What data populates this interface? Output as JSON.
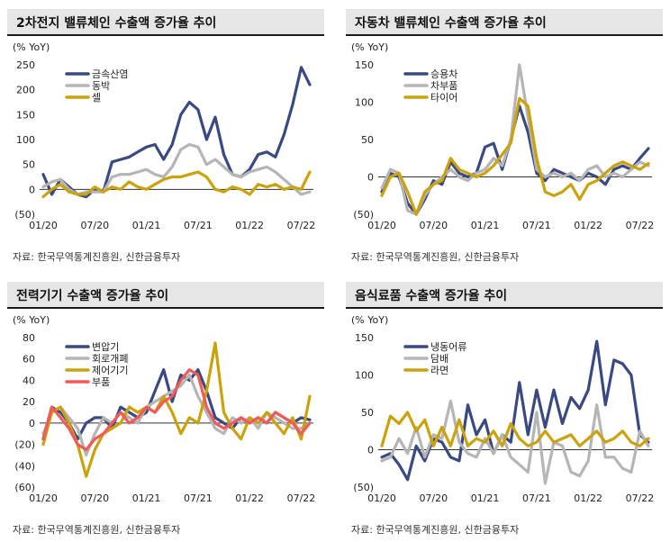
{
  "source_label": "자료: 한국무역통계진흥원, 신한금융투자",
  "colors": {
    "navy": "#3a4a80",
    "gray": "#b5b5b5",
    "gold": "#c9a20c",
    "red": "#f05a5a"
  },
  "chart_data": [
    {
      "type": "line",
      "title": "2차전지 밸류체인 수출액 증가율 추이",
      "ylabel": "(% YoY)",
      "ylim": [
        -50,
        250
      ],
      "yticks": [
        "250",
        "200",
        "150",
        "100",
        "50",
        "0",
        "(50)"
      ],
      "xticks": [
        "01/20",
        "07/20",
        "01/21",
        "07/21",
        "01/22",
        "07/22"
      ],
      "x": [
        "2020-01",
        "2020-02",
        "2020-03",
        "2020-04",
        "2020-05",
        "2020-06",
        "2020-07",
        "2020-08",
        "2020-09",
        "2020-10",
        "2020-11",
        "2020-12",
        "2021-01",
        "2021-02",
        "2021-03",
        "2021-04",
        "2021-05",
        "2021-06",
        "2021-07",
        "2021-08",
        "2021-09",
        "2021-10",
        "2021-11",
        "2021-12",
        "2022-01",
        "2022-02",
        "2022-03",
        "2022-04",
        "2022-05",
        "2022-06",
        "2022-07",
        "2022-08"
      ],
      "series": [
        {
          "name": "금속산염",
          "color": "#3a4a80",
          "values": [
            30,
            -10,
            20,
            5,
            -10,
            -15,
            0,
            -5,
            55,
            60,
            65,
            75,
            85,
            90,
            60,
            90,
            150,
            175,
            160,
            100,
            145,
            70,
            30,
            25,
            40,
            70,
            75,
            65,
            110,
            170,
            245,
            210
          ]
        },
        {
          "name": "동박",
          "color": "#b5b5b5",
          "values": [
            5,
            15,
            20,
            0,
            -10,
            -5,
            -5,
            -5,
            25,
            30,
            30,
            35,
            40,
            30,
            25,
            45,
            80,
            90,
            85,
            50,
            60,
            45,
            30,
            25,
            35,
            40,
            45,
            35,
            20,
            5,
            -10,
            -5
          ]
        },
        {
          "name": "셀",
          "color": "#c9a20c",
          "values": [
            -15,
            0,
            10,
            -5,
            -10,
            -10,
            5,
            -5,
            5,
            0,
            15,
            5,
            0,
            10,
            20,
            25,
            25,
            30,
            35,
            25,
            0,
            -5,
            5,
            0,
            -10,
            10,
            5,
            10,
            0,
            5,
            0,
            35
          ]
        }
      ]
    },
    {
      "type": "line",
      "title": "자동차 밸류체인 수출액 증가율 추이",
      "ylabel": "(% YoY)",
      "ylim": [
        -50,
        150
      ],
      "yticks": [
        "150",
        "100",
        "50",
        "0",
        "(50)"
      ],
      "xticks": [
        "01/20",
        "07/20",
        "01/21",
        "07/21",
        "01/22",
        "07/22"
      ],
      "x": [
        "2020-01",
        "2020-02",
        "2020-03",
        "2020-04",
        "2020-05",
        "2020-06",
        "2020-07",
        "2020-08",
        "2020-09",
        "2020-10",
        "2020-11",
        "2020-12",
        "2021-01",
        "2021-02",
        "2021-03",
        "2021-04",
        "2021-05",
        "2021-06",
        "2021-07",
        "2021-08",
        "2021-09",
        "2021-10",
        "2021-11",
        "2021-12",
        "2022-01",
        "2022-02",
        "2022-03",
        "2022-04",
        "2022-05",
        "2022-06",
        "2022-07",
        "2022-08"
      ],
      "series": [
        {
          "name": "승용차",
          "color": "#3a4a80",
          "values": [
            -20,
            5,
            0,
            -35,
            -50,
            -30,
            -5,
            -10,
            20,
            5,
            0,
            5,
            40,
            45,
            10,
            50,
            95,
            60,
            5,
            -5,
            10,
            5,
            0,
            -5,
            5,
            0,
            -10,
            10,
            15,
            10,
            25,
            38
          ]
        },
        {
          "name": "차부품",
          "color": "#b5b5b5",
          "values": [
            -15,
            10,
            5,
            -45,
            -55,
            -25,
            -10,
            0,
            10,
            0,
            -5,
            5,
            10,
            25,
            15,
            50,
            150,
            80,
            10,
            0,
            5,
            0,
            5,
            -5,
            10,
            15,
            0,
            5,
            0,
            10,
            20,
            15
          ]
        },
        {
          "name": "타이어",
          "color": "#c9a20c",
          "values": [
            -25,
            0,
            5,
            -20,
            -50,
            -20,
            -10,
            -5,
            25,
            10,
            5,
            0,
            5,
            15,
            30,
            45,
            105,
            95,
            25,
            -20,
            -25,
            -20,
            -10,
            -30,
            -10,
            -5,
            5,
            15,
            20,
            15,
            10,
            18
          ]
        }
      ]
    },
    {
      "type": "line",
      "title": "전력기기 수출액 증가율 추이",
      "ylabel": "(% YoY)",
      "ylim": [
        -60,
        80
      ],
      "yticks": [
        "80",
        "60",
        "40",
        "20",
        "0",
        "(20)",
        "(40)",
        "(60)"
      ],
      "xticks": [
        "01/20",
        "07/20",
        "01/21",
        "07/21",
        "01/22",
        "07/22"
      ],
      "x": [
        "2020-01",
        "2020-02",
        "2020-03",
        "2020-04",
        "2020-05",
        "2020-06",
        "2020-07",
        "2020-08",
        "2020-09",
        "2020-10",
        "2020-11",
        "2020-12",
        "2021-01",
        "2021-02",
        "2021-03",
        "2021-04",
        "2021-05",
        "2021-06",
        "2021-07",
        "2021-08",
        "2021-09",
        "2021-10",
        "2021-11",
        "2021-12",
        "2022-01",
        "2022-02",
        "2022-03",
        "2022-04",
        "2022-05",
        "2022-06",
        "2022-07",
        "2022-08"
      ],
      "series": [
        {
          "name": "변압기",
          "color": "#3a4a80",
          "values": [
            -15,
            15,
            10,
            0,
            -15,
            0,
            5,
            5,
            -5,
            15,
            10,
            5,
            10,
            30,
            50,
            20,
            45,
            40,
            50,
            30,
            5,
            0,
            -5,
            5,
            0,
            5,
            0,
            10,
            5,
            0,
            5,
            3
          ]
        },
        {
          "name": "회로개폐",
          "color": "#b5b5b5",
          "values": [
            -10,
            10,
            15,
            5,
            -5,
            -30,
            -10,
            5,
            0,
            10,
            5,
            0,
            15,
            20,
            25,
            30,
            35,
            45,
            25,
            10,
            -5,
            -10,
            5,
            0,
            5,
            -5,
            10,
            5,
            0,
            -5,
            -5,
            0
          ]
        },
        {
          "name": "제어기기",
          "color": "#c9a20c",
          "values": [
            -20,
            10,
            15,
            0,
            -20,
            -50,
            -25,
            -10,
            -5,
            0,
            15,
            10,
            15,
            10,
            25,
            10,
            -10,
            5,
            0,
            30,
            75,
            10,
            -5,
            -15,
            5,
            0,
            10,
            0,
            -10,
            5,
            -15,
            25
          ]
        },
        {
          "name": "부품",
          "color": "#f05a5a",
          "values": [
            -15,
            15,
            5,
            -5,
            -20,
            -25,
            -15,
            -10,
            0,
            10,
            0,
            5,
            15,
            10,
            20,
            25,
            40,
            50,
            45,
            15,
            0,
            -5,
            0,
            5,
            0,
            5,
            0,
            10,
            5,
            0,
            -10,
            0
          ]
        }
      ]
    },
    {
      "type": "line",
      "title": "음식료품 수출액 증가율 추이",
      "ylabel": "(% YoY)",
      "ylim": [
        -50,
        150
      ],
      "yticks": [
        "150",
        "100",
        "50",
        "0",
        "(50)"
      ],
      "xticks": [
        "01/20",
        "07/20",
        "01/21",
        "07/21",
        "01/22",
        "07/22"
      ],
      "x": [
        "2020-01",
        "2020-02",
        "2020-03",
        "2020-04",
        "2020-05",
        "2020-06",
        "2020-07",
        "2020-08",
        "2020-09",
        "2020-10",
        "2020-11",
        "2020-12",
        "2021-01",
        "2021-02",
        "2021-03",
        "2021-04",
        "2021-05",
        "2021-06",
        "2021-07",
        "2021-08",
        "2021-09",
        "2021-10",
        "2021-11",
        "2021-12",
        "2022-01",
        "2022-02",
        "2022-03",
        "2022-04",
        "2022-05",
        "2022-06",
        "2022-07",
        "2022-08"
      ],
      "series": [
        {
          "name": "냉동어류",
          "color": "#3a4a80",
          "values": [
            -10,
            -5,
            -20,
            -40,
            5,
            -15,
            15,
            10,
            -10,
            -15,
            60,
            20,
            40,
            -5,
            20,
            10,
            90,
            20,
            80,
            30,
            80,
            35,
            70,
            55,
            80,
            145,
            60,
            120,
            115,
            100,
            20,
            10
          ]
        },
        {
          "name": "담배",
          "color": "#b5b5b5",
          "values": [
            -15,
            -10,
            15,
            -5,
            30,
            -10,
            20,
            15,
            65,
            10,
            -5,
            -10,
            15,
            -5,
            20,
            -10,
            -20,
            -30,
            50,
            -45,
            10,
            5,
            -30,
            -35,
            -15,
            60,
            -10,
            -10,
            -25,
            -30,
            25,
            5
          ]
        },
        {
          "name": "라면",
          "color": "#c9a20c",
          "values": [
            5,
            45,
            35,
            50,
            25,
            40,
            5,
            30,
            5,
            40,
            5,
            15,
            10,
            25,
            5,
            35,
            15,
            5,
            10,
            25,
            10,
            15,
            20,
            5,
            15,
            25,
            10,
            15,
            25,
            10,
            5,
            15
          ]
        }
      ]
    }
  ]
}
